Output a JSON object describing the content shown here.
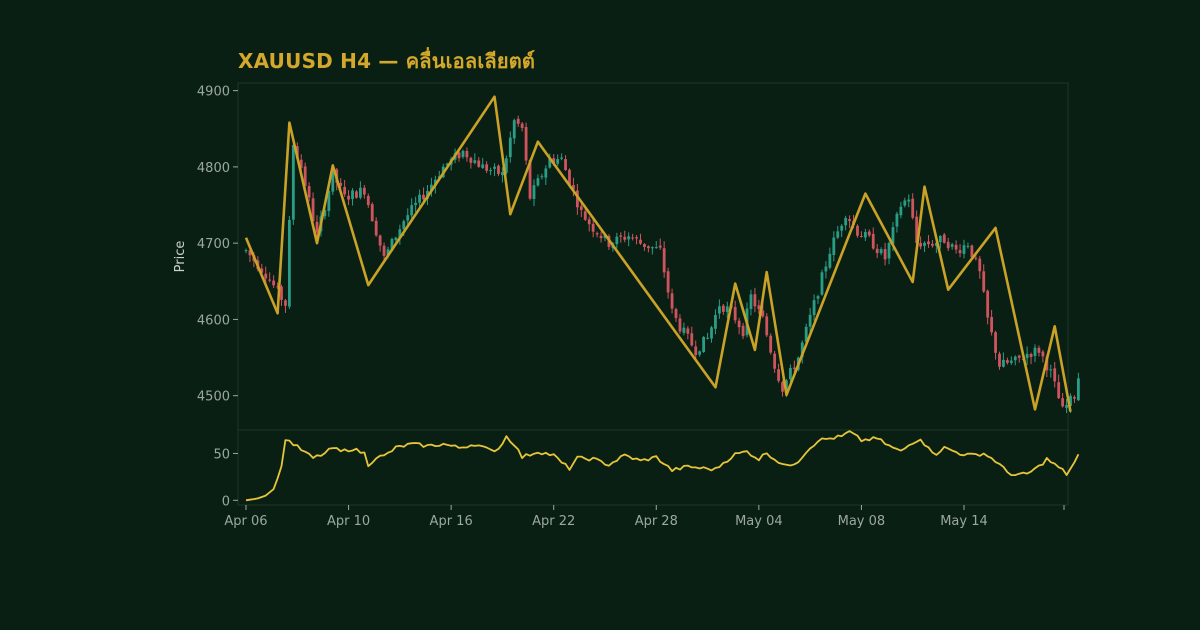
{
  "title": "XAUUSD H4 — คลื่นเอลเลียตต์",
  "colors": {
    "background": "#0a1f14",
    "title": "#d4a82a",
    "axis_text": "#9aa8a0",
    "up_candle": "#2a9d86",
    "down_candle": "#d0545e",
    "wave_line": "#c9a227",
    "oscillator_line": "#e6c53a"
  },
  "chart_data": [
    {
      "type": "candlestick",
      "panel": "price",
      "ylabel": "Price",
      "ylim": [
        4455,
        4910
      ],
      "yticks": [
        4500,
        4600,
        4700,
        4800,
        4900
      ],
      "x_tick_labels": [
        "Apr 06",
        "Apr 10",
        "Apr 16",
        "Apr 22",
        "Apr 28",
        "May 04",
        "May 08",
        "May 14"
      ],
      "grid": false,
      "price_anchors": [
        {
          "i": 0,
          "p": 4690
        },
        {
          "i": 5,
          "p": 4660
        },
        {
          "i": 10,
          "p": 4620
        },
        {
          "i": 12,
          "p": 4830
        },
        {
          "i": 14,
          "p": 4800
        },
        {
          "i": 18,
          "p": 4710
        },
        {
          "i": 22,
          "p": 4790
        },
        {
          "i": 25,
          "p": 4760
        },
        {
          "i": 30,
          "p": 4770
        },
        {
          "i": 35,
          "p": 4680
        },
        {
          "i": 40,
          "p": 4730
        },
        {
          "i": 46,
          "p": 4770
        },
        {
          "i": 50,
          "p": 4800
        },
        {
          "i": 55,
          "p": 4820
        },
        {
          "i": 60,
          "p": 4800
        },
        {
          "i": 65,
          "p": 4790
        },
        {
          "i": 68,
          "p": 4860
        },
        {
          "i": 70,
          "p": 4850
        },
        {
          "i": 72,
          "p": 4760
        },
        {
          "i": 77,
          "p": 4810
        },
        {
          "i": 80,
          "p": 4810
        },
        {
          "i": 85,
          "p": 4740
        },
        {
          "i": 88,
          "p": 4720
        },
        {
          "i": 92,
          "p": 4700
        },
        {
          "i": 97,
          "p": 4710
        },
        {
          "i": 100,
          "p": 4700
        },
        {
          "i": 105,
          "p": 4690
        },
        {
          "i": 108,
          "p": 4610
        },
        {
          "i": 110,
          "p": 4590
        },
        {
          "i": 114,
          "p": 4560
        },
        {
          "i": 117,
          "p": 4575
        },
        {
          "i": 120,
          "p": 4620
        },
        {
          "i": 123,
          "p": 4610
        },
        {
          "i": 126,
          "p": 4585
        },
        {
          "i": 128,
          "p": 4630
        },
        {
          "i": 131,
          "p": 4600
        },
        {
          "i": 134,
          "p": 4540
        },
        {
          "i": 136,
          "p": 4510
        },
        {
          "i": 140,
          "p": 4550
        },
        {
          "i": 144,
          "p": 4620
        },
        {
          "i": 148,
          "p": 4690
        },
        {
          "i": 152,
          "p": 4740
        },
        {
          "i": 155,
          "p": 4715
        },
        {
          "i": 158,
          "p": 4705
        },
        {
          "i": 162,
          "p": 4680
        },
        {
          "i": 166,
          "p": 4750
        },
        {
          "i": 168,
          "p": 4760
        },
        {
          "i": 170,
          "p": 4700
        },
        {
          "i": 174,
          "p": 4700
        },
        {
          "i": 177,
          "p": 4705
        },
        {
          "i": 180,
          "p": 4690
        },
        {
          "i": 183,
          "p": 4700
        },
        {
          "i": 186,
          "p": 4660
        },
        {
          "i": 188,
          "p": 4600
        },
        {
          "i": 191,
          "p": 4540
        },
        {
          "i": 195,
          "p": 4545
        },
        {
          "i": 198,
          "p": 4555
        },
        {
          "i": 201,
          "p": 4560
        },
        {
          "i": 204,
          "p": 4530
        },
        {
          "i": 207,
          "p": 4480
        },
        {
          "i": 210,
          "p": 4500
        },
        {
          "i": 211,
          "p": 4525
        }
      ]
    },
    {
      "type": "line",
      "panel": "price",
      "name": "wave",
      "x_index": [
        0,
        8,
        11,
        18,
        22,
        31,
        63,
        67,
        74,
        119,
        124,
        129,
        132,
        137,
        157,
        169,
        172,
        178,
        190,
        200,
        205,
        209
      ],
      "y": [
        4707,
        4608,
        4858,
        4700,
        4802,
        4645,
        4892,
        4738,
        4833,
        4511,
        4647,
        4560,
        4662,
        4501,
        4765,
        4649,
        4774,
        4639,
        4720,
        4482,
        4591,
        4479
      ]
    },
    {
      "type": "line",
      "panel": "oscillator",
      "ylim": [
        -5,
        75
      ],
      "yticks": [
        0,
        50
      ],
      "osc_anchors": [
        {
          "i": 0,
          "v": 0
        },
        {
          "i": 3,
          "v": 2
        },
        {
          "i": 5,
          "v": 5
        },
        {
          "i": 7,
          "v": 12
        },
        {
          "i": 9,
          "v": 35
        },
        {
          "i": 10,
          "v": 66
        },
        {
          "i": 12,
          "v": 60
        },
        {
          "i": 14,
          "v": 54
        },
        {
          "i": 17,
          "v": 45
        },
        {
          "i": 20,
          "v": 50
        },
        {
          "i": 22,
          "v": 56
        },
        {
          "i": 24,
          "v": 52
        },
        {
          "i": 27,
          "v": 55
        },
        {
          "i": 30,
          "v": 50
        },
        {
          "i": 31,
          "v": 38
        },
        {
          "i": 33,
          "v": 46
        },
        {
          "i": 35,
          "v": 47
        },
        {
          "i": 38,
          "v": 56
        },
        {
          "i": 42,
          "v": 60
        },
        {
          "i": 46,
          "v": 58
        },
        {
          "i": 50,
          "v": 60
        },
        {
          "i": 54,
          "v": 56
        },
        {
          "i": 58,
          "v": 60
        },
        {
          "i": 62,
          "v": 53
        },
        {
          "i": 64,
          "v": 55
        },
        {
          "i": 66,
          "v": 68
        },
        {
          "i": 68,
          "v": 60
        },
        {
          "i": 70,
          "v": 46
        },
        {
          "i": 74,
          "v": 52
        },
        {
          "i": 78,
          "v": 48
        },
        {
          "i": 80,
          "v": 40
        },
        {
          "i": 82,
          "v": 34
        },
        {
          "i": 84,
          "v": 45
        },
        {
          "i": 88,
          "v": 44
        },
        {
          "i": 92,
          "v": 38
        },
        {
          "i": 96,
          "v": 48
        },
        {
          "i": 100,
          "v": 42
        },
        {
          "i": 104,
          "v": 46
        },
        {
          "i": 108,
          "v": 32
        },
        {
          "i": 112,
          "v": 36
        },
        {
          "i": 116,
          "v": 34
        },
        {
          "i": 119,
          "v": 33
        },
        {
          "i": 121,
          "v": 40
        },
        {
          "i": 124,
          "v": 49
        },
        {
          "i": 127,
          "v": 52
        },
        {
          "i": 130,
          "v": 44
        },
        {
          "i": 132,
          "v": 51
        },
        {
          "i": 134,
          "v": 44
        },
        {
          "i": 137,
          "v": 36
        },
        {
          "i": 140,
          "v": 42
        },
        {
          "i": 142,
          "v": 52
        },
        {
          "i": 145,
          "v": 64
        },
        {
          "i": 148,
          "v": 66
        },
        {
          "i": 151,
          "v": 68
        },
        {
          "i": 153,
          "v": 73
        },
        {
          "i": 156,
          "v": 64
        },
        {
          "i": 160,
          "v": 66
        },
        {
          "i": 163,
          "v": 58
        },
        {
          "i": 166,
          "v": 52
        },
        {
          "i": 169,
          "v": 62
        },
        {
          "i": 171,
          "v": 66
        },
        {
          "i": 173,
          "v": 55
        },
        {
          "i": 175,
          "v": 50
        },
        {
          "i": 177,
          "v": 56
        },
        {
          "i": 181,
          "v": 50
        },
        {
          "i": 184,
          "v": 48
        },
        {
          "i": 187,
          "v": 50
        },
        {
          "i": 190,
          "v": 42
        },
        {
          "i": 193,
          "v": 30
        },
        {
          "i": 195,
          "v": 27
        },
        {
          "i": 198,
          "v": 28
        },
        {
          "i": 201,
          "v": 36
        },
        {
          "i": 203,
          "v": 44
        },
        {
          "i": 205,
          "v": 38
        },
        {
          "i": 207,
          "v": 32
        },
        {
          "i": 208,
          "v": 28
        },
        {
          "i": 210,
          "v": 40
        },
        {
          "i": 211,
          "v": 48
        }
      ]
    }
  ]
}
